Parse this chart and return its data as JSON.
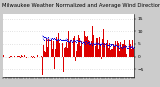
{
  "title": "Milwaukee Weather Normalized and Average Wind Direction (Last 24 Hours)",
  "bg_color": "#cccccc",
  "plot_bg_color": "#ffffff",
  "grid_color": "#aaaaaa",
  "bar_color": "#dd0000",
  "line_color": "#0000dd",
  "y_min": -8,
  "y_max": 17,
  "y_ticks": [
    15,
    10,
    5,
    0,
    -5
  ],
  "title_fontsize": 3.8,
  "tick_fontsize": 3.2,
  "n_points": 144
}
